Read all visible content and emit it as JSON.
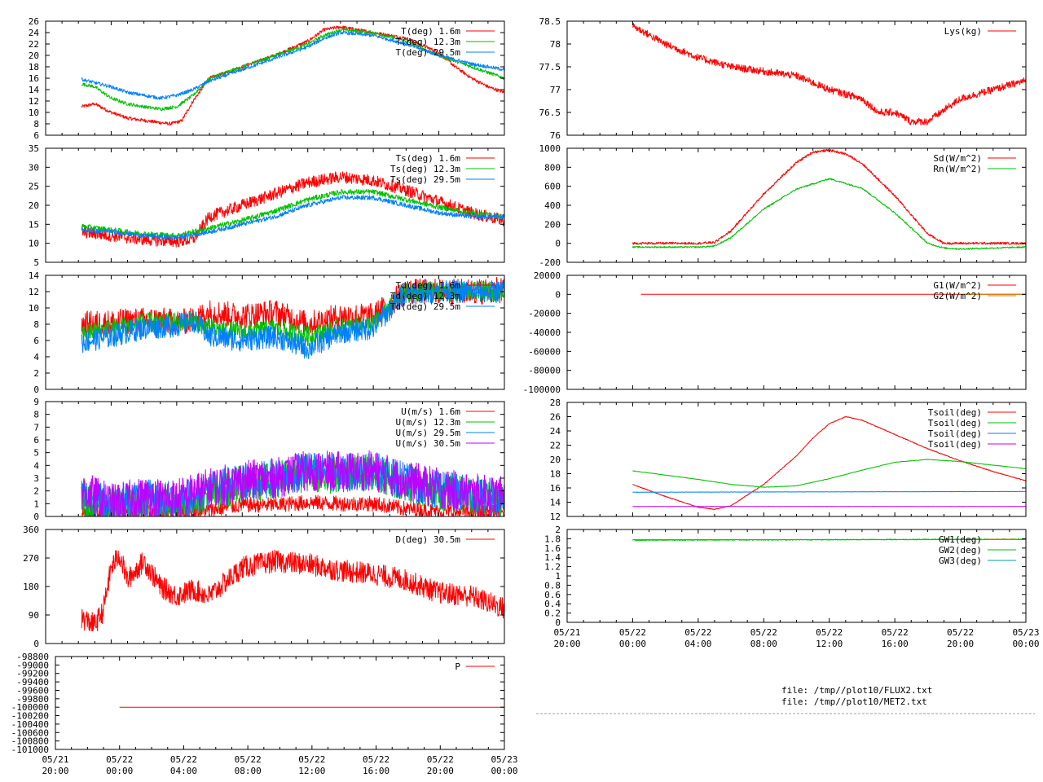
{
  "colors": {
    "red": "#ff0000",
    "green": "#00c000",
    "blue": "#0080ff",
    "purple": "#c000ff",
    "brown": "#c08000",
    "teal": "#00a0a0"
  },
  "time_axis": {
    "ticks": [
      {
        "t": -4,
        "line1": "05/21",
        "line2": "20:00"
      },
      {
        "t": 0,
        "line1": "05/22",
        "line2": "00:00"
      },
      {
        "t": 4,
        "line1": "05/22",
        "line2": "04:00"
      },
      {
        "t": 8,
        "line1": "05/22",
        "line2": "08:00"
      },
      {
        "t": 12,
        "line1": "05/22",
        "line2": "12:00"
      },
      {
        "t": 16,
        "line1": "05/22",
        "line2": "16:00"
      },
      {
        "t": 20,
        "line1": "05/22",
        "line2": "20:00"
      },
      {
        "t": 24,
        "line1": "05/23",
        "line2": "00:00"
      }
    ],
    "range": [
      -4,
      24
    ]
  },
  "footer": {
    "file1": "file: /tmp//plot10/FLUX2.txt",
    "file2": "file: /tmp//plot10/MET2.txt"
  },
  "chart_data": [
    {
      "id": "T",
      "type": "line",
      "ylim": [
        6,
        26
      ],
      "yticks": [
        6,
        8,
        10,
        12,
        14,
        16,
        18,
        20,
        22,
        24,
        26
      ],
      "series": [
        {
          "name": "T(deg)  1.6m",
          "color": "red",
          "noise": 0.3,
          "x": [
            -1.8,
            -1,
            0,
            1,
            2,
            3,
            3.6,
            4.3,
            5,
            6,
            8,
            10,
            12,
            13,
            14,
            16,
            18,
            20,
            21,
            22,
            23,
            24
          ],
          "y": [
            11,
            11.5,
            10,
            9,
            8.6,
            8.2,
            8,
            8.5,
            12,
            16,
            18,
            20,
            22.5,
            24.5,
            25,
            24,
            23,
            20.5,
            18,
            16,
            14.5,
            13.5
          ]
        },
        {
          "name": "T(deg) 12.3m",
          "color": "green",
          "noise": 0.3,
          "x": [
            -1.8,
            -1,
            0,
            1,
            2,
            3,
            4,
            4.5,
            5,
            6,
            8,
            10,
            12,
            13,
            14,
            16,
            18,
            20,
            22,
            24
          ],
          "y": [
            15,
            14.5,
            12.5,
            11.5,
            11,
            10.6,
            11,
            12,
            13,
            16,
            18,
            20,
            22,
            23.5,
            24.5,
            24,
            22.5,
            20,
            18,
            16
          ]
        },
        {
          "name": "T(deg) 29.5m",
          "color": "blue",
          "noise": 0.3,
          "x": [
            -1.8,
            -1,
            0,
            1,
            2,
            3,
            4,
            5,
            6,
            8,
            10,
            12,
            13,
            14,
            16,
            18,
            20,
            22,
            24
          ],
          "y": [
            15.8,
            15.2,
            14.5,
            13.5,
            13,
            12.5,
            13,
            14,
            15.5,
            17.5,
            19.5,
            21.5,
            23,
            24,
            23.5,
            22,
            20,
            18.5,
            17.5
          ]
        }
      ]
    },
    {
      "id": "Ts",
      "type": "line",
      "ylim": [
        5,
        35
      ],
      "yticks": [
        5,
        10,
        15,
        20,
        25,
        30,
        35
      ],
      "series": [
        {
          "name": "Ts(deg)  1.6m",
          "color": "red",
          "noise": 1.6,
          "x": [
            -1.8,
            0,
            2,
            4,
            5,
            6,
            8,
            10,
            12,
            14,
            16,
            18,
            20,
            22,
            24
          ],
          "y": [
            13,
            12,
            11,
            10.5,
            11,
            17,
            20,
            23,
            26,
            27.5,
            26.5,
            24,
            21,
            18,
            16
          ]
        },
        {
          "name": "Ts(deg) 12.3m",
          "color": "green",
          "noise": 0.7,
          "x": [
            -1.8,
            0,
            2,
            4,
            6,
            8,
            10,
            12,
            14,
            16,
            18,
            20,
            22,
            24
          ],
          "y": [
            14.5,
            13.5,
            12.5,
            12,
            14,
            16,
            18.5,
            21.5,
            23.5,
            23.5,
            21.5,
            19.5,
            18,
            17
          ]
        },
        {
          "name": "Ts(deg) 29.5m",
          "color": "blue",
          "noise": 0.6,
          "x": [
            -1.8,
            0,
            2,
            4,
            6,
            8,
            10,
            12,
            14,
            16,
            18,
            20,
            22,
            24
          ],
          "y": [
            13.5,
            13,
            12,
            11.5,
            13,
            15,
            17,
            20,
            22,
            22,
            20,
            18,
            17,
            17
          ]
        }
      ]
    },
    {
      "id": "Td",
      "type": "line",
      "ylim": [
        0,
        14
      ],
      "yticks": [
        0,
        2,
        4,
        6,
        8,
        10,
        12,
        14
      ],
      "series": [
        {
          "name": "Td(deg)  1.6m",
          "color": "red",
          "noise": 1.6,
          "x": [
            -1.8,
            0,
            2,
            3,
            4,
            5,
            6,
            8,
            10,
            12,
            14,
            16,
            18,
            20,
            22,
            24
          ],
          "y": [
            8,
            8.2,
            8.5,
            8.5,
            8.2,
            8.5,
            9.5,
            9,
            9.5,
            8,
            9,
            9,
            12,
            12,
            12,
            12.2
          ]
        },
        {
          "name": "Td(deg) 12.3m",
          "color": "green",
          "noise": 1.2,
          "x": [
            -1.8,
            0,
            2,
            4,
            5,
            6,
            8,
            10,
            12,
            14,
            16,
            18,
            20,
            22,
            24
          ],
          "y": [
            6.8,
            7.5,
            8.2,
            8.2,
            8.5,
            7.5,
            7,
            7.5,
            6.5,
            7.5,
            8,
            12,
            12,
            12,
            12
          ]
        },
        {
          "name": "Td(deg) 29.5m",
          "color": "blue",
          "noise": 1.4,
          "x": [
            -1.8,
            0,
            2,
            4,
            5,
            6,
            8,
            10,
            12,
            14,
            16,
            18,
            20,
            22,
            24
          ],
          "y": [
            5.8,
            6.5,
            7.5,
            7.8,
            8.5,
            6.5,
            6,
            6.5,
            5,
            7,
            7.5,
            12,
            12,
            12,
            12
          ]
        }
      ]
    },
    {
      "id": "U",
      "type": "line",
      "ylim": [
        0,
        9
      ],
      "yticks": [
        0,
        1,
        2,
        3,
        4,
        5,
        6,
        7,
        8,
        9
      ],
      "series": [
        {
          "name": "U(m/s)  1.6m",
          "color": "red",
          "noise": 0.6,
          "x": [
            -1.8,
            0,
            2,
            4,
            6,
            8,
            10,
            12,
            14,
            16,
            18,
            20,
            22,
            24
          ],
          "y": [
            0.3,
            0.3,
            0.3,
            0.3,
            0.5,
            0.9,
            0.9,
            1.1,
            1.0,
            1.0,
            0.6,
            0.4,
            0.3,
            0.3
          ]
        },
        {
          "name": "U(m/s) 12.3m",
          "color": "green",
          "noise": 1.5,
          "x": [
            -1.8,
            0,
            2,
            4,
            6,
            8,
            10,
            12,
            14,
            16,
            18,
            20,
            22,
            24
          ],
          "y": [
            1.4,
            0.8,
            1.2,
            1.2,
            1.8,
            2.5,
            2.8,
            3.5,
            3.2,
            3.5,
            2.6,
            2.0,
            1.6,
            1.4
          ]
        },
        {
          "name": "U(m/s) 29.5m",
          "color": "blue",
          "noise": 1.5,
          "x": [
            -1.8,
            0,
            2,
            4,
            6,
            8,
            10,
            12,
            14,
            16,
            18,
            20,
            22,
            24
          ],
          "y": [
            1.6,
            1.0,
            1.4,
            1.3,
            2.0,
            2.7,
            3.0,
            3.6,
            3.4,
            3.6,
            2.7,
            2.1,
            1.7,
            1.5
          ]
        },
        {
          "name": "U(m/s) 30.5m",
          "color": "purple",
          "noise": 1.6,
          "x": [
            -1.8,
            0,
            2,
            4,
            6,
            8,
            10,
            12,
            14,
            16,
            18,
            20,
            22,
            24
          ],
          "y": [
            2.0,
            1.0,
            1.5,
            1.4,
            2.2,
            2.8,
            3.0,
            3.6,
            3.5,
            3.6,
            2.8,
            2.2,
            1.8,
            1.5
          ]
        }
      ]
    },
    {
      "id": "D",
      "type": "line",
      "ylim": [
        0,
        360
      ],
      "yticks": [
        0,
        90,
        180,
        270,
        360
      ],
      "series": [
        {
          "name": "D(deg)  30.5m",
          "color": "red",
          "noise": 35,
          "x": [
            -1.8,
            -1,
            -0.5,
            0,
            0.5,
            1,
            2,
            3,
            4,
            5,
            6,
            8,
            10,
            12,
            14,
            16,
            18,
            20,
            22,
            24
          ],
          "y": [
            80,
            60,
            100,
            240,
            280,
            200,
            260,
            180,
            150,
            170,
            150,
            240,
            260,
            250,
            230,
            220,
            200,
            160,
            150,
            110
          ]
        }
      ]
    },
    {
      "id": "P",
      "type": "line",
      "ylim": [
        -101000,
        -98800
      ],
      "yticks": [
        -101000,
        -100800,
        -100600,
        -100400,
        -100200,
        -100000,
        -99800,
        -99600,
        -99400,
        -99200,
        -99000,
        -98800
      ],
      "series": [
        {
          "name": "P",
          "color": "red",
          "noise": 0,
          "x": [
            0,
            24
          ],
          "y": [
            -100000,
            -100000
          ]
        }
      ]
    },
    {
      "id": "Lys",
      "type": "line",
      "ylim": [
        76,
        78.5
      ],
      "yticks": [
        76,
        76.5,
        77,
        77.5,
        78,
        78.5
      ],
      "series": [
        {
          "name": "Lys(kg)",
          "color": "red",
          "noise": 0.08,
          "x": [
            0,
            2,
            4,
            6,
            8,
            10,
            12,
            14,
            15,
            16,
            17,
            18,
            20,
            22,
            24
          ],
          "y": [
            78.4,
            78.0,
            77.7,
            77.5,
            77.4,
            77.3,
            77.0,
            76.8,
            76.5,
            76.5,
            76.3,
            76.3,
            76.8,
            77.0,
            77.2
          ]
        }
      ]
    },
    {
      "id": "Rad",
      "type": "line",
      "ylim": [
        -200,
        1000
      ],
      "yticks": [
        -200,
        0,
        200,
        400,
        600,
        800,
        1000
      ],
      "series": [
        {
          "name": "Sd(W/m^2)",
          "color": "red",
          "noise": 12,
          "x": [
            0,
            4,
            5,
            6,
            8,
            10,
            11,
            12,
            13,
            14,
            16,
            18,
            19,
            20,
            22,
            24
          ],
          "y": [
            0,
            0,
            10,
            130,
            520,
            850,
            960,
            980,
            940,
            840,
            500,
            100,
            0,
            0,
            0,
            0
          ]
        },
        {
          "name": "Rn(W/m^2)",
          "color": "green",
          "noise": 8,
          "x": [
            0,
            4,
            5,
            6,
            8,
            10,
            12,
            14,
            16,
            18,
            19,
            20,
            22,
            24
          ],
          "y": [
            -40,
            -40,
            -30,
            60,
            360,
            570,
            680,
            580,
            320,
            0,
            -50,
            -60,
            -50,
            -40
          ]
        }
      ]
    },
    {
      "id": "G",
      "type": "line",
      "ylim": [
        -100000,
        20000
      ],
      "yticks": [
        -100000,
        -80000,
        -60000,
        -40000,
        -20000,
        0,
        20000
      ],
      "series": [
        {
          "name": "G1(W/m^2)",
          "color": "red",
          "noise": 0,
          "x": [
            0.5,
            24
          ],
          "y": [
            0,
            0
          ]
        },
        {
          "name": "G2(W/m^2)",
          "color": "brown",
          "noise": 0,
          "x": [
            20,
            24
          ],
          "y": [
            0,
            0
          ]
        }
      ]
    },
    {
      "id": "Tsoil",
      "type": "line",
      "ylim": [
        12,
        28
      ],
      "yticks": [
        12,
        14,
        16,
        18,
        20,
        22,
        24,
        26,
        28
      ],
      "series": [
        {
          "name": "Tsoil(deg)",
          "color": "red",
          "noise": 0.05,
          "x": [
            0,
            2,
            4,
            5,
            6,
            8,
            10,
            11,
            12,
            13,
            14,
            16,
            18,
            20,
            22,
            24
          ],
          "y": [
            16.5,
            14.8,
            13.3,
            13,
            13.5,
            16.5,
            20.5,
            23,
            25,
            26,
            25.5,
            23.5,
            21.5,
            19.8,
            18.3,
            17
          ]
        },
        {
          "name": "Tsoil(deg)",
          "color": "green",
          "noise": 0.03,
          "x": [
            0,
            2,
            4,
            6,
            8,
            10,
            12,
            14,
            16,
            18,
            20,
            22,
            24
          ],
          "y": [
            18.4,
            17.8,
            17.2,
            16.5,
            16.1,
            16.3,
            17.3,
            18.5,
            19.6,
            20,
            19.7,
            19.2,
            18.7
          ]
        },
        {
          "name": "Tsoil(deg)",
          "color": "blue",
          "noise": 0.02,
          "x": [
            0,
            24
          ],
          "y": [
            15.4,
            15.5
          ]
        },
        {
          "name": "Tsoil(deg)",
          "color": "purple",
          "noise": 0.02,
          "x": [
            0,
            24
          ],
          "y": [
            13.4,
            13.4
          ]
        }
      ]
    },
    {
      "id": "GW",
      "type": "line",
      "ylim": [
        0,
        2
      ],
      "yticks": [
        0,
        0.2,
        0.4,
        0.6,
        0.8,
        1,
        1.2,
        1.4,
        1.6,
        1.8,
        2
      ],
      "series": [
        {
          "name": "GW1(deg)",
          "color": "brown",
          "noise": 0,
          "x": [
            0,
            24
          ],
          "y": [
            1.78,
            1.78
          ]
        },
        {
          "name": "GW2(deg)",
          "color": "green",
          "noise": 0.01,
          "x": [
            0,
            24
          ],
          "y": [
            1.77,
            1.79
          ]
        },
        {
          "name": "GW3(deg)",
          "color": "teal",
          "noise": 0,
          "x": [],
          "y": []
        }
      ]
    }
  ]
}
